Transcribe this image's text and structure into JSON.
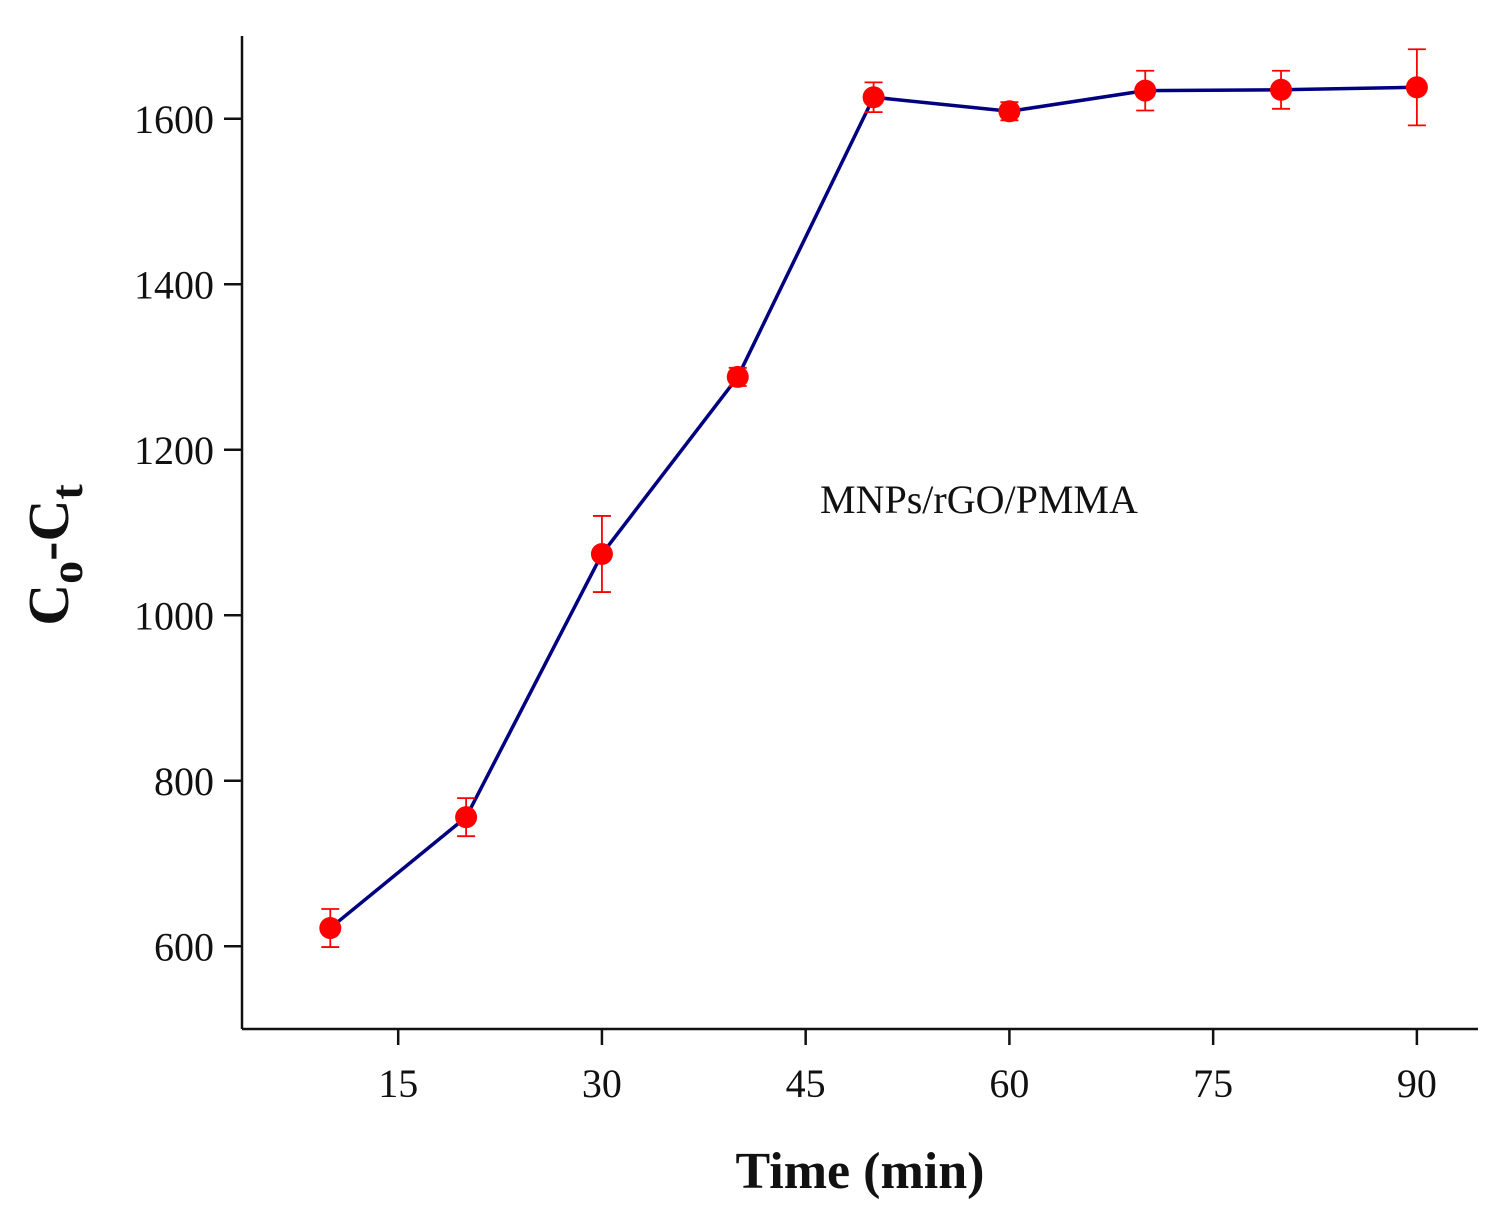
{
  "chart_data": {
    "type": "line",
    "title": "",
    "xlabel": "Time (min)",
    "ylabel": {
      "main1": "C",
      "sub1": "o",
      "dash": "-",
      "main2": "C",
      "sub2": "t"
    },
    "xlim": [
      3.5,
      94.5
    ],
    "ylim": [
      500,
      1700
    ],
    "xticks": [
      15,
      30,
      45,
      60,
      75,
      90
    ],
    "yticks": [
      600,
      800,
      1000,
      1200,
      1400,
      1600
    ],
    "grid": false,
    "annotation": "MNPs/rGO/PMMA",
    "series": [
      {
        "name": "MNPs/rGO/PMMA",
        "line_color": "#000080",
        "marker_color": "#ff0000",
        "x": [
          10,
          20,
          30,
          40,
          50,
          60,
          70,
          80,
          90
        ],
        "y": [
          622,
          756,
          1074,
          1288,
          1626,
          1609,
          1634,
          1635,
          1638
        ],
        "err": [
          23,
          23,
          46,
          11,
          18,
          11,
          24,
          23,
          46
        ]
      }
    ]
  }
}
